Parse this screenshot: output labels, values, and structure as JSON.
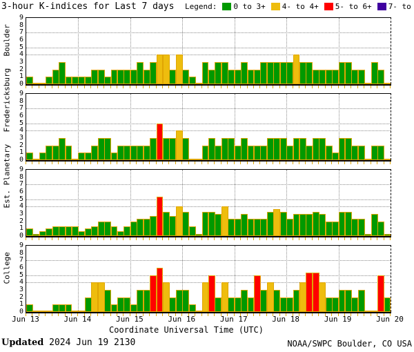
{
  "title": "3-hour K-indices for Last 7 days",
  "legend": {
    "label": "Legend:",
    "items": [
      {
        "label": "0 to 3+",
        "color": "#009900"
      },
      {
        "label": "4- to 4+",
        "color": "#eebd0e"
      },
      {
        "label": "5- to 6+",
        "color": "#ff0000"
      },
      {
        "label": "7- to 9",
        "color": "#4000a0"
      }
    ]
  },
  "chart_data": {
    "type": "bar",
    "title": "3-hour K-indices for Last 7 days",
    "xlabel": "Coordinate Universal Time (UTC)",
    "x_tick_labels": [
      "Jun 13",
      "Jun 14",
      "Jun 15",
      "Jun 16",
      "Jun 17",
      "Jun 18",
      "Jun 19",
      "Jun 20"
    ],
    "ylim": [
      0,
      9
    ],
    "y_ticks": [
      0,
      1,
      2,
      3,
      4,
      5,
      6,
      7,
      8,
      9
    ],
    "h_gridlines": [
      4,
      5,
      7
    ],
    "bar_interval_hours": 3,
    "bars_per_day": 8,
    "color_by_value": {
      "0 to 3+": "green",
      "4- to 4+": "yellow",
      "5- to 6+": "red",
      "7- to 9": "purple"
    },
    "panels": [
      {
        "station": "Boulder",
        "days": [
          {
            "date": "Jun 13",
            "values": [
              1,
              0,
              0,
              1,
              2,
              3,
              1,
              1
            ]
          },
          {
            "date": "Jun 14",
            "values": [
              1,
              1,
              2,
              2,
              1,
              2,
              2,
              2
            ]
          },
          {
            "date": "Jun 15",
            "values": [
              2,
              3,
              2,
              3,
              4,
              4,
              2,
              4
            ]
          },
          {
            "date": "Jun 16",
            "values": [
              2,
              1,
              0,
              3,
              2,
              3,
              3,
              2
            ]
          },
          {
            "date": "Jun 17",
            "values": [
              2,
              3,
              2,
              2,
              3,
              3,
              3,
              3
            ]
          },
          {
            "date": "Jun 18",
            "values": [
              3,
              4,
              3,
              3,
              2,
              2,
              2,
              2
            ]
          },
          {
            "date": "Jun 19",
            "values": [
              3,
              3,
              2,
              2,
              0,
              3,
              2,
              0
            ]
          }
        ]
      },
      {
        "station": "Fredericksburg",
        "days": [
          {
            "date": "Jun 13",
            "values": [
              1,
              0,
              1,
              2,
              2,
              3,
              2,
              0
            ]
          },
          {
            "date": "Jun 14",
            "values": [
              1,
              1,
              2,
              3,
              3,
              1,
              2,
              2
            ]
          },
          {
            "date": "Jun 15",
            "values": [
              2,
              2,
              2,
              3,
              5,
              3,
              3,
              4
            ]
          },
          {
            "date": "Jun 16",
            "values": [
              3,
              0,
              0,
              2,
              3,
              2,
              3,
              3
            ]
          },
          {
            "date": "Jun 17",
            "values": [
              2,
              3,
              2,
              2,
              2,
              3,
              3,
              3
            ]
          },
          {
            "date": "Jun 18",
            "values": [
              2,
              3,
              3,
              2,
              3,
              3,
              2,
              1
            ]
          },
          {
            "date": "Jun 19",
            "values": [
              3,
              3,
              2,
              2,
              0,
              2,
              2,
              0
            ]
          }
        ]
      },
      {
        "station": "Est. Planetary",
        "days": [
          {
            "date": "Jun 13",
            "values": [
              1,
              0.3,
              0.7,
              1,
              1.3,
              1.3,
              1.3,
              1.3
            ]
          },
          {
            "date": "Jun 14",
            "values": [
              0.7,
              1,
              1.3,
              2,
              2,
              1.3,
              0.7,
              1.3
            ]
          },
          {
            "date": "Jun 15",
            "values": [
              2,
              2.3,
              2.3,
              2.7,
              5.3,
              3.3,
              2.7,
              4
            ]
          },
          {
            "date": "Jun 16",
            "values": [
              3.3,
              1.3,
              0.3,
              3.3,
              3.3,
              3,
              4,
              2.3
            ]
          },
          {
            "date": "Jun 17",
            "values": [
              2.3,
              3,
              2.3,
              2.3,
              2.3,
              3.3,
              3.7,
              3.3
            ]
          },
          {
            "date": "Jun 18",
            "values": [
              2.3,
              3,
              3,
              3,
              3.3,
              3,
              2,
              2
            ]
          },
          {
            "date": "Jun 19",
            "values": [
              3.3,
              3.3,
              2.3,
              2.3,
              0.3,
              3,
              2,
              0.3
            ]
          }
        ]
      },
      {
        "station": "College",
        "days": [
          {
            "date": "Jun 13",
            "values": [
              1,
              0,
              0,
              0,
              1,
              1,
              1,
              0
            ]
          },
          {
            "date": "Jun 14",
            "values": [
              0,
              2,
              4,
              4,
              3,
              1,
              2,
              2
            ]
          },
          {
            "date": "Jun 15",
            "values": [
              1,
              3,
              3,
              5,
              6,
              4,
              2,
              3
            ]
          },
          {
            "date": "Jun 16",
            "values": [
              3,
              1,
              0,
              4,
              5,
              2,
              4,
              2
            ]
          },
          {
            "date": "Jun 17",
            "values": [
              2,
              3,
              2,
              5,
              3,
              4,
              3,
              2
            ]
          },
          {
            "date": "Jun 18",
            "values": [
              2,
              3,
              4,
              5.3,
              5.3,
              4,
              2,
              2
            ]
          },
          {
            "date": "Jun 19",
            "values": [
              3,
              3,
              2,
              3,
              0,
              0,
              5,
              2
            ]
          }
        ]
      }
    ]
  },
  "footer": {
    "updated_label": "Updated",
    "updated_value": "2024 Jun 19 2130",
    "credit": "NOAA/SWPC Boulder, CO USA"
  }
}
